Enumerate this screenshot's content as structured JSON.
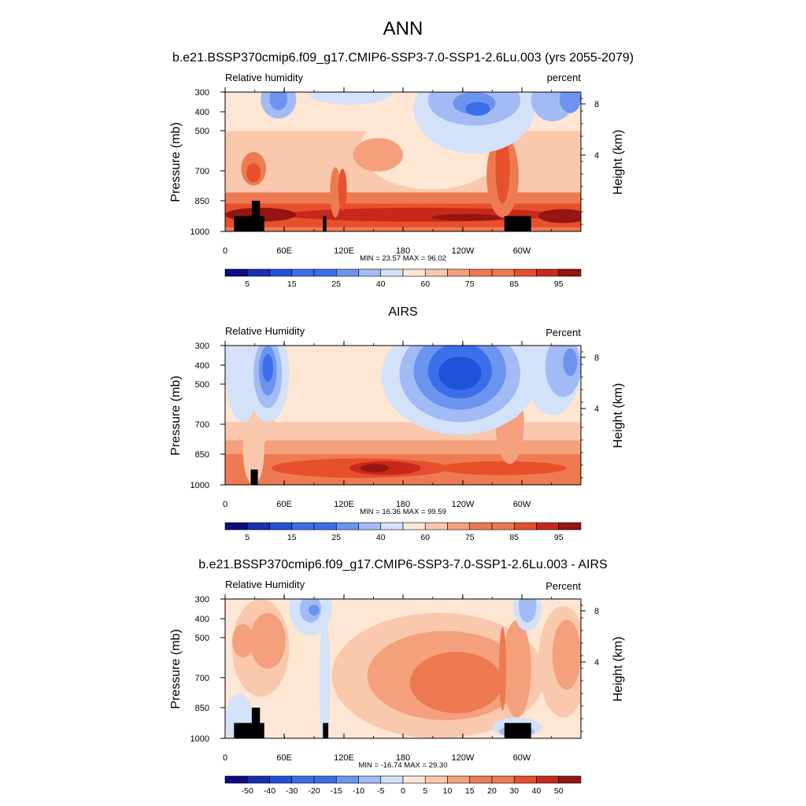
{
  "figure": {
    "title": "ANN"
  },
  "colors": {
    "fill_scale_10": [
      "#0d0c82",
      "#1a2db3",
      "#2052d8",
      "#3b6fea",
      "#6c94ef",
      "#a3bbf4",
      "#d3e1f9",
      "#fde6d3",
      "#f9c8ad",
      "#f4a07c",
      "#ee7a52",
      "#e7502c",
      "#c8281c",
      "#961510"
    ],
    "fill_scale_diff": [
      "#0d0c82",
      "#1a2db3",
      "#2052d8",
      "#3b6fea",
      "#6c94ef",
      "#a3bbf4",
      "#d3e1f9",
      "#fde6d3",
      "#f9c8ad",
      "#f4a07c",
      "#ee7a52",
      "#e7502c",
      "#c8281c",
      "#961510"
    ],
    "terrain": "#000000"
  },
  "chart_data": [
    {
      "type": "heatmap",
      "title": "b.e21.BSSP370cmip6.f09_g17.CMIP6-SSP3-7.0-SSP1-2.6Lu.003 (yrs 2055-2079)",
      "left_label": "Relative humidity",
      "right_label": "percent",
      "ylabel": "Pressure (mb)",
      "y2label": "Height (km)",
      "x_ticks": [
        "0",
        "60E",
        "120E",
        "180",
        "120W",
        "60W"
      ],
      "y_ticks": [
        "300",
        "400",
        "500",
        "700",
        "850",
        "1000"
      ],
      "y2_ticks": [
        "8",
        "4"
      ],
      "stats": "MIN =  23.57  MAX =  96.02",
      "colorbar_labels": [
        "5",
        "15",
        "25",
        "40",
        "60",
        "75",
        "85",
        "95"
      ],
      "min": 23.57,
      "max": 96.02
    },
    {
      "type": "heatmap",
      "title": "AIRS",
      "left_label": "Relative Humidity",
      "right_label": "Percent",
      "ylabel": "Pressure (mb)",
      "y2label": "Height (km)",
      "x_ticks": [
        "0",
        "60E",
        "120E",
        "180",
        "120W",
        "60W"
      ],
      "y_ticks": [
        "300",
        "400",
        "500",
        "700",
        "850",
        "1000"
      ],
      "y2_ticks": [
        "8",
        "4"
      ],
      "stats": "MIN =  16.36  MAX =  99.59",
      "colorbar_labels": [
        "5",
        "15",
        "25",
        "40",
        "60",
        "75",
        "85",
        "95"
      ],
      "min": 16.36,
      "max": 99.59
    },
    {
      "type": "heatmap",
      "title": "b.e21.BSSP370cmip6.f09_g17.CMIP6-SSP3-7.0-SSP1-2.6Lu.003 - AIRS",
      "left_label": "Relative Humidity",
      "right_label": "Percent",
      "ylabel": "Pressure (mb)",
      "y2label": "Height (km)",
      "x_ticks": [
        "0",
        "60E",
        "120E",
        "180",
        "120W",
        "60W"
      ],
      "y_ticks": [
        "300",
        "400",
        "500",
        "700",
        "850",
        "1000"
      ],
      "y2_ticks": [
        "8",
        "4"
      ],
      "stats": "MIN = -16.74  MAX =  29.30",
      "colorbar_labels": [
        "-50",
        "-40",
        "-30",
        "-20",
        "-15",
        "-10",
        "-5",
        "0",
        "5",
        "10",
        "15",
        "20",
        "30",
        "40",
        "50"
      ],
      "min": -16.74,
      "max": 29.3
    }
  ]
}
